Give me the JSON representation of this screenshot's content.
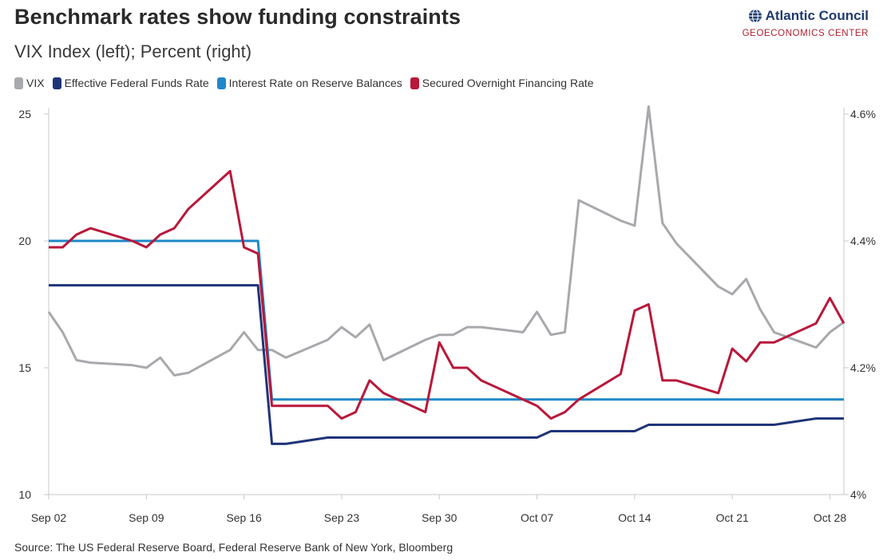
{
  "header": {
    "title": "Benchmark rates show funding constraints",
    "subtitle": "VIX Index (left); Percent (right)"
  },
  "brand": {
    "name": "Atlantic Council",
    "unit": "GEOECONOMICS CENTER",
    "logo_icon": "globe-icon"
  },
  "source": "Source: The US Federal Reserve Board, Federal Reserve Bank of New York, Bloomberg",
  "colors": {
    "vix": "#a7a9ac",
    "effr": "#1f3478",
    "iorb": "#1e88c8",
    "sofr": "#b8183a",
    "axis": "#c9c9c9",
    "brand_blue": "#1f3b6f",
    "brand_red": "#b01f2e"
  },
  "chart_data": {
    "type": "line",
    "title": "Benchmark rates show funding constraints",
    "subtitle": "VIX Index (left); Percent (right)",
    "xlabel": "",
    "ylabel_left": "VIX Index",
    "ylabel_right": "Percent",
    "x_tick_labels": [
      "Sep 02",
      "Sep 09",
      "Sep 16",
      "Sep 23",
      "Sep 30",
      "Oct 07",
      "Oct 14",
      "Oct 21",
      "Oct 28"
    ],
    "x_tick_days": [
      0,
      7,
      14,
      21,
      28,
      35,
      42,
      49,
      56
    ],
    "x_range_days": [
      0,
      57
    ],
    "y_left": {
      "range": [
        10,
        25
      ],
      "ticks": [
        10,
        15,
        20,
        25
      ],
      "tick_labels": [
        "10",
        "15",
        "20",
        "25"
      ]
    },
    "y_right": {
      "range": [
        4.0,
        4.6
      ],
      "ticks": [
        4.0,
        4.2,
        4.4,
        4.6
      ],
      "tick_labels": [
        "4%",
        "4.2%",
        "4.4%",
        "4.6%"
      ]
    },
    "grid": false,
    "legend_position": "top-left",
    "series": [
      {
        "name": "VIX",
        "axis": "left",
        "color": "#a7a9ac",
        "step": false,
        "x": [
          0,
          1,
          2,
          3,
          6,
          7,
          8,
          9,
          10,
          13,
          14,
          15,
          16,
          17,
          20,
          21,
          22,
          23,
          24,
          27,
          28,
          29,
          30,
          31,
          34,
          35,
          36,
          37,
          38,
          41,
          42,
          43,
          44,
          45,
          48,
          49,
          50,
          51,
          52,
          55,
          56,
          57
        ],
        "values": [
          17.2,
          16.4,
          15.3,
          15.2,
          15.1,
          15.0,
          15.4,
          14.7,
          14.8,
          15.7,
          16.4,
          15.7,
          15.7,
          15.4,
          16.1,
          16.6,
          16.2,
          16.7,
          15.3,
          16.1,
          16.3,
          16.3,
          16.6,
          16.6,
          16.4,
          17.2,
          16.3,
          16.4,
          21.6,
          20.8,
          20.6,
          25.3,
          20.7,
          19.9,
          18.2,
          17.9,
          18.5,
          17.3,
          16.4,
          15.8,
          16.4,
          16.8
        ]
      },
      {
        "name": "Effective Federal Funds Rate",
        "axis": "right",
        "color": "#1f3478",
        "step": true,
        "x": [
          0,
          15,
          16,
          17,
          20,
          35,
          36,
          42,
          43,
          52,
          55,
          57
        ],
        "values": [
          4.33,
          4.33,
          4.08,
          4.08,
          4.09,
          4.09,
          4.1,
          4.1,
          4.11,
          4.11,
          4.12,
          4.12
        ]
      },
      {
        "name": "Interest Rate on Reserve Balances",
        "axis": "right",
        "color": "#1e88c8",
        "step": true,
        "x": [
          0,
          15,
          16,
          57
        ],
        "values": [
          4.4,
          4.4,
          4.15,
          4.15
        ]
      },
      {
        "name": "Secured Overnight Financing Rate",
        "axis": "right",
        "color": "#b8183a",
        "step": false,
        "x": [
          0,
          1,
          2,
          3,
          6,
          7,
          8,
          9,
          10,
          13,
          14,
          15,
          16,
          17,
          20,
          21,
          22,
          23,
          24,
          27,
          28,
          29,
          30,
          31,
          34,
          35,
          36,
          37,
          38,
          41,
          42,
          43,
          44,
          45,
          48,
          49,
          50,
          51,
          52,
          55,
          56,
          57
        ],
        "values": [
          4.39,
          4.39,
          4.41,
          4.42,
          4.4,
          4.39,
          4.41,
          4.42,
          4.45,
          4.51,
          4.39,
          4.38,
          4.14,
          4.14,
          4.14,
          4.12,
          4.13,
          4.18,
          4.16,
          4.13,
          4.24,
          4.2,
          4.2,
          4.18,
          4.15,
          4.14,
          4.12,
          4.13,
          4.15,
          4.19,
          4.29,
          4.3,
          4.18,
          4.18,
          4.16,
          4.23,
          4.21,
          4.24,
          4.24,
          4.27,
          4.31,
          4.27
        ]
      }
    ]
  }
}
